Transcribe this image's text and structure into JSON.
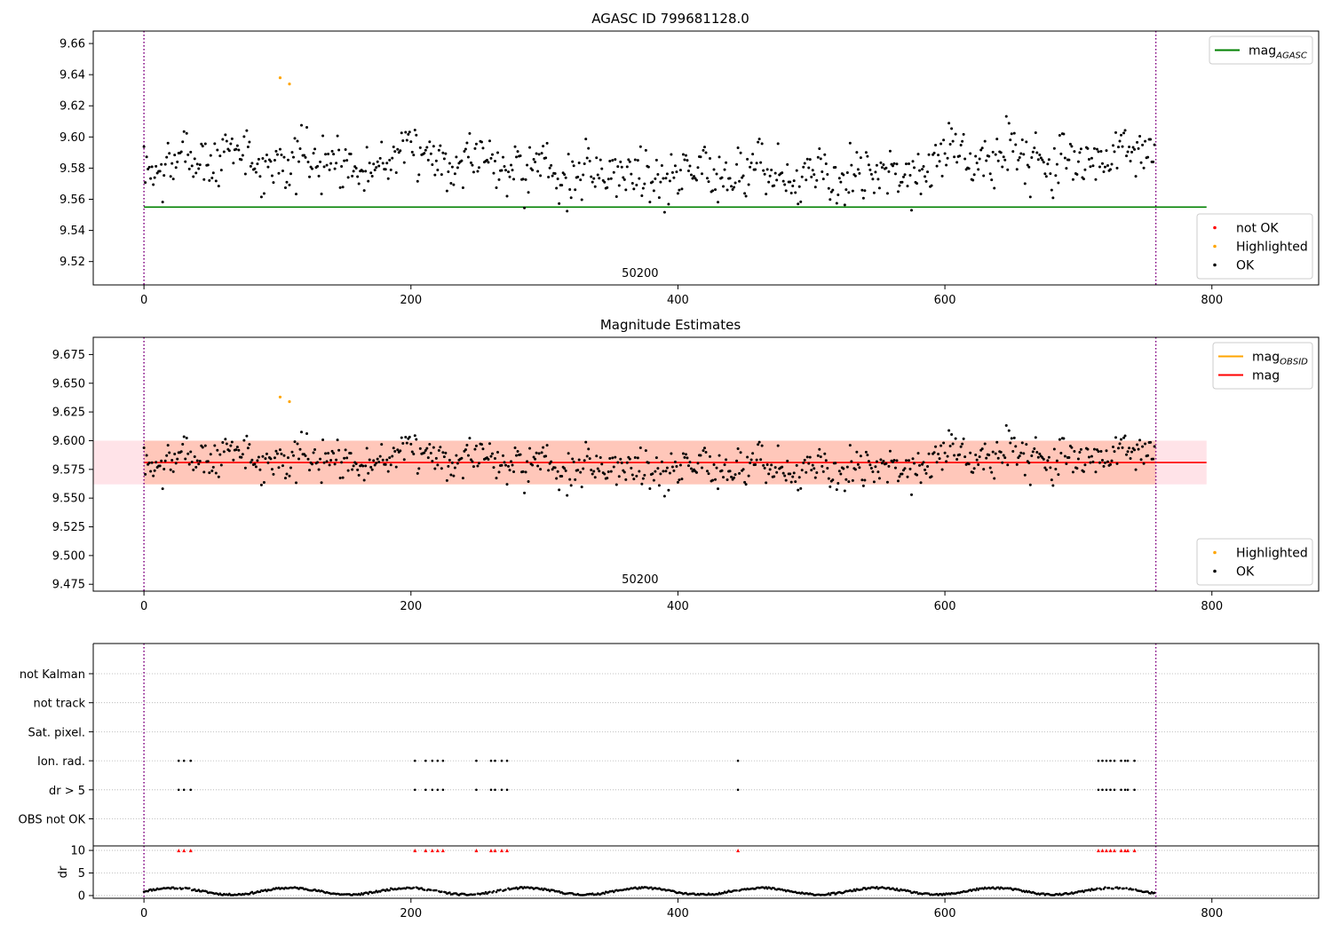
{
  "chart_data": [
    {
      "type": "scatter",
      "title": "AGASC ID 799681128.0",
      "xlim": [
        -38,
        880
      ],
      "ylim": [
        9.505,
        9.668
      ],
      "xticks": [
        0,
        200,
        400,
        600,
        800
      ],
      "yticks": [
        9.52,
        9.54,
        9.56,
        9.58,
        9.6,
        9.62,
        9.64,
        9.66
      ],
      "ytick_decimals": 2,
      "obs_boundaries": [
        0,
        758
      ],
      "obs_label": {
        "text": "50200",
        "x": 379
      },
      "hlines": [
        {
          "name": "mag_AGASC",
          "y": 9.555,
          "x0": 0,
          "x1": 796,
          "color": "#008000"
        }
      ],
      "highlighted_points": [
        [
          102,
          9.638
        ],
        [
          109,
          9.634
        ]
      ],
      "ok_series": {
        "n": 758,
        "center": 9.581,
        "spread": 0.019,
        "seed": 7
      },
      "legends": [
        {
          "loc": "top-right",
          "entries": [
            {
              "label": "mag",
              "sub": "AGASC",
              "kind": "line",
              "color": "#008000"
            }
          ]
        },
        {
          "loc": "bottom-right",
          "entries": [
            {
              "label": "not OK",
              "kind": "dot",
              "color": "#ff0000"
            },
            {
              "label": "Highlighted",
              "kind": "dot",
              "color": "#ffa500"
            },
            {
              "label": "OK",
              "kind": "dot",
              "color": "#000000"
            }
          ]
        }
      ]
    },
    {
      "type": "scatter",
      "title": "Magnitude Estimates",
      "xlim": [
        -38,
        880
      ],
      "ylim": [
        9.469,
        9.69
      ],
      "xticks": [
        0,
        200,
        400,
        600,
        800
      ],
      "yticks": [
        9.475,
        9.5,
        9.525,
        9.55,
        9.575,
        9.6,
        9.625,
        9.65,
        9.675
      ],
      "ytick_decimals": 3,
      "obs_boundaries": [
        0,
        758
      ],
      "obs_label": {
        "text": "50200",
        "x": 379
      },
      "hlines": [
        {
          "name": "mag",
          "y": 9.581,
          "x0": 0,
          "x1": 796,
          "color": "#ff0000"
        }
      ],
      "bands": [
        {
          "y0": 9.562,
          "y1": 9.6,
          "x0": -38,
          "x1": 796,
          "color": "#ffc0cb",
          "opacity": 0.45
        },
        {
          "y0": 9.562,
          "y1": 9.6,
          "x0": 0,
          "x1": 758,
          "color": "#ffa07a",
          "opacity": 0.42
        }
      ],
      "highlighted_points": [
        [
          102,
          9.638
        ],
        [
          109,
          9.634
        ]
      ],
      "ok_series": {
        "n": 758,
        "center": 9.581,
        "spread": 0.019,
        "seed": 7
      },
      "legends": [
        {
          "loc": "top-right",
          "entries": [
            {
              "label": "mag",
              "sub": "OBSID",
              "kind": "line",
              "color": "#ffa500"
            },
            {
              "label": "mag",
              "kind": "line",
              "color": "#ff0000"
            }
          ]
        },
        {
          "loc": "bottom-right",
          "entries": [
            {
              "label": "Highlighted",
              "kind": "dot",
              "color": "#ffa500"
            },
            {
              "label": "OK",
              "kind": "dot",
              "color": "#000000"
            }
          ]
        }
      ]
    },
    {
      "type": "scatter",
      "title": "",
      "xlim": [
        -38,
        880
      ],
      "xticks": [
        0,
        200,
        400,
        600,
        800
      ],
      "obs_boundaries": [
        0,
        758
      ],
      "flag_rows": [
        "not Kalman",
        "not track",
        "Sat. pixel.",
        "Ion. rad.",
        "dr > 5",
        "OBS not OK"
      ],
      "flagged_x": {
        "Ion. rad.": [
          26,
          30,
          35,
          203,
          211,
          216,
          220,
          224,
          249,
          260,
          263,
          268,
          272,
          445,
          715,
          718,
          721,
          724,
          727,
          732,
          735,
          737,
          742
        ],
        "dr > 5": [
          26,
          30,
          35,
          203,
          211,
          216,
          220,
          224,
          249,
          260,
          263,
          268,
          272,
          445,
          715,
          718,
          721,
          724,
          727,
          732,
          735,
          737,
          742
        ]
      },
      "dr": {
        "ylabel": "dr",
        "ylim": [
          -0.6,
          11
        ],
        "yticks": [
          0,
          5,
          10
        ],
        "clip_value": 10,
        "clipped_x": [
          26,
          30,
          35,
          203,
          211,
          216,
          220,
          224,
          249,
          260,
          263,
          268,
          272,
          445,
          715,
          718,
          721,
          724,
          727,
          732,
          735,
          737,
          742
        ],
        "series_seed": 11
      }
    }
  ]
}
